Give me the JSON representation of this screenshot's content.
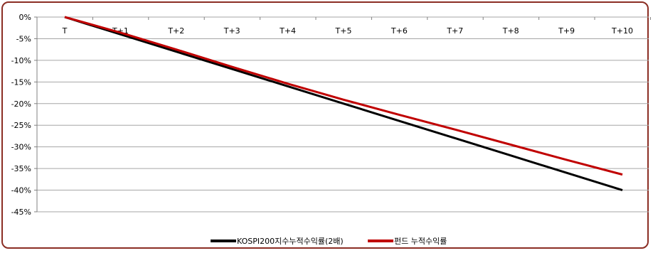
{
  "chart_data": {
    "type": "line",
    "categories": [
      "T",
      "T+1",
      "T+2",
      "T+3",
      "T+4",
      "T+5",
      "T+6",
      "T+7",
      "T+8",
      "T+9",
      "T+10"
    ],
    "y_ticks": [
      "0%",
      "-5%",
      "-10%",
      "-15%",
      "-20%",
      "-25%",
      "-30%",
      "-35%",
      "-40%",
      "-45%"
    ],
    "ylim": [
      -45,
      0
    ],
    "grid": true,
    "legend_position": "bottom",
    "series": [
      {
        "name": "KOSPI200지수누적수익률(2배)",
        "color": "#000000",
        "values": [
          0,
          -4,
          -8,
          -12,
          -16,
          -20,
          -24,
          -28,
          -32,
          -36,
          -40
        ]
      },
      {
        "name": "펀드 누적수익률",
        "color": "#c00000",
        "values": [
          0,
          -3.6,
          -7.5,
          -11.5,
          -15.4,
          -19.1,
          -22.6,
          -26.0,
          -29.5,
          -33.0,
          -36.4
        ]
      }
    ]
  }
}
